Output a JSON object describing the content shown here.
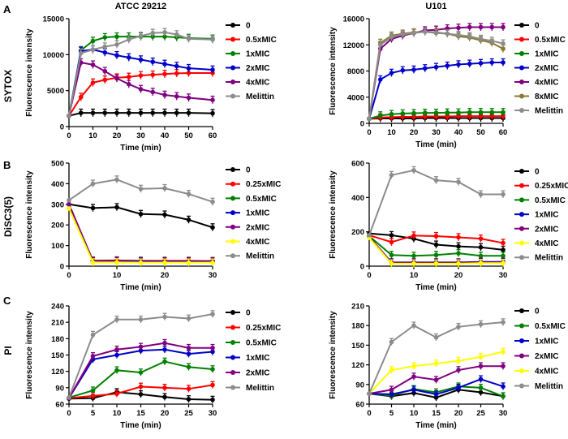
{
  "figure": {
    "panel_letters": [
      "A",
      "B",
      "C"
    ],
    "row_labels": [
      "SYTOX",
      "DiSC3(5)",
      "PI"
    ]
  },
  "colors": {
    "black": "#000000",
    "red": "#ff0000",
    "green": "#008000",
    "blue": "#0000c8",
    "purple": "#800080",
    "yellow": "#ffff00",
    "olive": "#8b7a2e",
    "gray": "#8c8c8c"
  },
  "chart_data": [
    {
      "type": "line",
      "title": "ATCC 29212",
      "xlabel": "Time (min)",
      "ylabel": "Fluorescence intensity",
      "xlim": [
        0,
        60
      ],
      "ylim": [
        0,
        15000
      ],
      "xticks": [
        0,
        10,
        20,
        30,
        40,
        50,
        60
      ],
      "yticks": [
        0,
        5000,
        10000,
        15000
      ],
      "series": [
        {
          "name": "0",
          "color": "black",
          "x": [
            0,
            5,
            10,
            15,
            20,
            25,
            30,
            35,
            40,
            45,
            50,
            60
          ],
          "values": [
            1500,
            1900,
            1900,
            1900,
            1900,
            1900,
            1900,
            1900,
            1900,
            1900,
            1900,
            1850
          ]
        },
        {
          "name": "0.5xMIC",
          "color": "red",
          "x": [
            0,
            5,
            10,
            15,
            20,
            25,
            30,
            35,
            40,
            45,
            50,
            60
          ],
          "values": [
            1500,
            4100,
            6100,
            6500,
            6800,
            6900,
            7100,
            7200,
            7300,
            7400,
            7450,
            7450
          ]
        },
        {
          "name": "1xMIC",
          "color": "green",
          "x": [
            0,
            5,
            10,
            15,
            20,
            25,
            30,
            35,
            40,
            45,
            50,
            60
          ],
          "values": [
            1500,
            10600,
            11900,
            12400,
            12500,
            12500,
            12500,
            12500,
            12500,
            12400,
            12300,
            12200
          ]
        },
        {
          "name": "2xMIC",
          "color": "blue",
          "x": [
            0,
            5,
            10,
            15,
            20,
            25,
            30,
            35,
            40,
            45,
            50,
            60
          ],
          "values": [
            1500,
            10500,
            10700,
            10300,
            9900,
            9600,
            9300,
            9000,
            8700,
            8400,
            8100,
            7900
          ]
        },
        {
          "name": "4xMIC",
          "color": "purple",
          "x": [
            0,
            5,
            10,
            15,
            20,
            25,
            30,
            35,
            40,
            45,
            50,
            60
          ],
          "values": [
            1500,
            8900,
            8600,
            7700,
            6700,
            5900,
            5200,
            4800,
            4400,
            4200,
            4000,
            3700
          ]
        },
        {
          "name": "Melittin",
          "color": "gray",
          "x": [
            0,
            5,
            10,
            15,
            20,
            25,
            30,
            35,
            40,
            45,
            50,
            60
          ],
          "values": [
            1500,
            10200,
            10700,
            11100,
            11400,
            12100,
            12600,
            13000,
            13100,
            12800,
            12200,
            12100
          ]
        }
      ]
    },
    {
      "type": "line",
      "title": "U101",
      "xlabel": "Time (min)",
      "ylabel": "Fluorescence intensity",
      "xlim": [
        0,
        60
      ],
      "ylim": [
        0,
        16000
      ],
      "xticks": [
        0,
        10,
        20,
        30,
        40,
        50,
        60
      ],
      "yticks": [
        0,
        4000,
        8000,
        12000,
        16000
      ],
      "series": [
        {
          "name": "0",
          "color": "black",
          "x": [
            0,
            5,
            10,
            15,
            20,
            25,
            30,
            35,
            40,
            45,
            50,
            55,
            60
          ],
          "values": [
            700,
            750,
            750,
            750,
            750,
            800,
            800,
            800,
            800,
            800,
            800,
            800,
            800
          ]
        },
        {
          "name": "0.5xMIC",
          "color": "red",
          "x": [
            0,
            5,
            10,
            15,
            20,
            25,
            30,
            35,
            40,
            45,
            50,
            55,
            60
          ],
          "values": [
            700,
            900,
            950,
            1000,
            1000,
            1050,
            1050,
            1050,
            1100,
            1100,
            1100,
            1100,
            1100
          ]
        },
        {
          "name": "1xMIC",
          "color": "green",
          "x": [
            0,
            5,
            10,
            15,
            20,
            25,
            30,
            35,
            40,
            45,
            50,
            55,
            60
          ],
          "values": [
            700,
            1200,
            1400,
            1500,
            1550,
            1600,
            1600,
            1650,
            1650,
            1700,
            1700,
            1700,
            1700
          ]
        },
        {
          "name": "2xMIC",
          "color": "blue",
          "x": [
            0,
            5,
            10,
            15,
            20,
            25,
            30,
            35,
            40,
            45,
            50,
            55,
            60
          ],
          "values": [
            700,
            6700,
            7700,
            8100,
            8200,
            8400,
            8600,
            8800,
            9000,
            9100,
            9200,
            9300,
            9300
          ]
        },
        {
          "name": "4xMIC",
          "color": "purple",
          "x": [
            0,
            5,
            10,
            15,
            20,
            25,
            30,
            35,
            40,
            45,
            50,
            55,
            60
          ],
          "values": [
            700,
            11400,
            12900,
            13400,
            13800,
            14200,
            14300,
            14500,
            14600,
            14700,
            14700,
            14700,
            14700
          ]
        },
        {
          "name": "8xMIC",
          "color": "olive",
          "x": [
            0,
            5,
            10,
            15,
            20,
            25,
            30,
            35,
            40,
            45,
            50,
            55,
            60
          ],
          "values": [
            700,
            12300,
            13400,
            13700,
            13900,
            14000,
            13900,
            13700,
            13300,
            13100,
            12700,
            12300,
            11400
          ]
        },
        {
          "name": "Melittin",
          "color": "gray",
          "x": [
            0,
            5,
            10,
            15,
            20,
            25,
            30,
            35,
            40,
            45,
            50,
            55,
            60
          ],
          "values": [
            700,
            12000,
            13200,
            13600,
            13800,
            14000,
            13800,
            13700,
            13500,
            13300,
            12900,
            12600,
            12200
          ]
        }
      ]
    },
    {
      "type": "line",
      "title": "",
      "xlabel": "Time (min)",
      "ylabel": "Fluorescence intensity",
      "xlim": [
        0,
        30
      ],
      "ylim": [
        0,
        500
      ],
      "xticks": [
        0,
        10,
        20,
        30
      ],
      "yticks": [
        0,
        100,
        200,
        300,
        400,
        500
      ],
      "series": [
        {
          "name": "0",
          "color": "black",
          "x": [
            0,
            5,
            10,
            15,
            20,
            25,
            30
          ],
          "values": [
            300,
            282,
            286,
            253,
            250,
            225,
            188
          ]
        },
        {
          "name": "0.25xMIC",
          "color": "red",
          "x": [
            0,
            5,
            10,
            15,
            20,
            25,
            30
          ],
          "values": [
            300,
            27,
            28,
            26,
            26,
            26,
            25
          ]
        },
        {
          "name": "0.5xMIC",
          "color": "green",
          "x": [
            0,
            5,
            10,
            15,
            20,
            25,
            30
          ],
          "values": [
            300,
            25,
            26,
            25,
            24,
            24,
            24
          ]
        },
        {
          "name": "1xMIC",
          "color": "blue",
          "x": [
            0,
            5,
            10,
            15,
            20,
            25,
            30
          ],
          "values": [
            300,
            24,
            25,
            24,
            23,
            23,
            23
          ]
        },
        {
          "name": "2xMIC",
          "color": "purple",
          "x": [
            0,
            5,
            10,
            15,
            20,
            25,
            30
          ],
          "values": [
            300,
            23,
            24,
            22,
            22,
            22,
            22
          ]
        },
        {
          "name": "4xMIC",
          "color": "yellow",
          "x": [
            0,
            5,
            10,
            15,
            20,
            25,
            30
          ],
          "values": [
            280,
            18,
            18,
            17,
            17,
            17,
            17
          ]
        },
        {
          "name": "Melittin",
          "color": "gray",
          "x": [
            0,
            5,
            10,
            15,
            20,
            25,
            30
          ],
          "values": [
            320,
            400,
            420,
            375,
            378,
            350,
            312
          ]
        }
      ]
    },
    {
      "type": "line",
      "title": "",
      "xlabel": "Time (min)",
      "ylabel": "Fluorescence intensity",
      "xlim": [
        0,
        30
      ],
      "ylim": [
        0,
        600
      ],
      "xticks": [
        0,
        10,
        20,
        30
      ],
      "yticks": [
        0,
        200,
        400,
        600
      ],
      "series": [
        {
          "name": "0",
          "color": "black",
          "x": [
            0,
            5,
            10,
            15,
            20,
            25,
            30
          ],
          "values": [
            190,
            180,
            160,
            125,
            115,
            110,
            95
          ]
        },
        {
          "name": "0.25xMIC",
          "color": "red",
          "x": [
            0,
            5,
            10,
            15,
            20,
            25,
            30
          ],
          "values": [
            180,
            140,
            178,
            175,
            168,
            160,
            135
          ]
        },
        {
          "name": "0.5xMIC",
          "color": "green",
          "x": [
            0,
            5,
            10,
            15,
            20,
            25,
            30
          ],
          "values": [
            175,
            65,
            60,
            65,
            75,
            60,
            60
          ]
        },
        {
          "name": "1xMIC",
          "color": "blue",
          "x": [
            0,
            5,
            10,
            15,
            20,
            25,
            30
          ],
          "values": [
            170,
            22,
            22,
            22,
            22,
            25,
            25
          ]
        },
        {
          "name": "2xMIC",
          "color": "purple",
          "x": [
            0,
            5,
            10,
            15,
            20,
            25,
            30
          ],
          "values": [
            170,
            20,
            20,
            20,
            20,
            22,
            22
          ]
        },
        {
          "name": "4xMIC",
          "color": "yellow",
          "x": [
            0,
            5,
            10,
            15,
            20,
            25,
            30
          ],
          "values": [
            165,
            15,
            15,
            15,
            15,
            18,
            18
          ]
        },
        {
          "name": "Melittin",
          "color": "gray",
          "x": [
            0,
            5,
            10,
            15,
            20,
            25,
            30
          ],
          "values": [
            180,
            530,
            558,
            500,
            490,
            418,
            418
          ]
        }
      ]
    },
    {
      "type": "line",
      "title": "",
      "xlabel": "Time (min)",
      "ylabel": "Fluorescence intensity",
      "xlim": [
        0,
        30
      ],
      "ylim": [
        60,
        240
      ],
      "xticks": [
        0,
        5,
        10,
        15,
        20,
        25,
        30
      ],
      "yticks": [
        60,
        90,
        120,
        150,
        180,
        210,
        240
      ],
      "series": [
        {
          "name": "0",
          "color": "black",
          "x": [
            0,
            5,
            10,
            15,
            20,
            25,
            30
          ],
          "values": [
            70,
            71,
            82,
            78,
            73,
            69,
            68
          ]
        },
        {
          "name": "0.25xMIC",
          "color": "red",
          "x": [
            0,
            5,
            10,
            15,
            20,
            25,
            30
          ],
          "values": [
            71,
            75,
            79,
            92,
            90,
            88,
            95
          ]
        },
        {
          "name": "0.5xMIC",
          "color": "green",
          "x": [
            0,
            5,
            10,
            15,
            20,
            25,
            30
          ],
          "values": [
            72,
            85,
            122,
            118,
            138,
            128,
            124
          ]
        },
        {
          "name": "1xMIC",
          "color": "blue",
          "x": [
            0,
            5,
            10,
            15,
            20,
            25,
            30
          ],
          "values": [
            71,
            142,
            150,
            158,
            160,
            152,
            156
          ]
        },
        {
          "name": "2xMIC",
          "color": "purple",
          "x": [
            0,
            5,
            10,
            15,
            20,
            25,
            30
          ],
          "values": [
            71,
            148,
            160,
            165,
            172,
            163,
            163
          ]
        },
        {
          "name": "Melittin",
          "color": "gray",
          "x": [
            0,
            5,
            10,
            15,
            20,
            25,
            30
          ],
          "values": [
            72,
            187,
            215,
            215,
            220,
            217,
            225
          ]
        }
      ]
    },
    {
      "type": "line",
      "title": "",
      "xlabel": "Time (min)",
      "ylabel": "Fluorescence intensity",
      "xlim": [
        0,
        30
      ],
      "ylim": [
        60,
        210
      ],
      "xticks": [
        0,
        5,
        10,
        15,
        20,
        25,
        30
      ],
      "yticks": [
        60,
        90,
        120,
        150,
        180,
        210
      ],
      "series": [
        {
          "name": "0",
          "color": "black",
          "x": [
            0,
            5,
            10,
            15,
            20,
            25,
            30
          ],
          "values": [
            76,
            72,
            77,
            70,
            82,
            78,
            72
          ]
        },
        {
          "name": "0.5xMIC",
          "color": "green",
          "x": [
            0,
            5,
            10,
            15,
            20,
            25,
            30
          ],
          "values": [
            76,
            73,
            83,
            78,
            87,
            85,
            72
          ]
        },
        {
          "name": "1xMIC",
          "color": "blue",
          "x": [
            0,
            5,
            10,
            15,
            20,
            25,
            30
          ],
          "values": [
            76,
            75,
            82,
            75,
            85,
            98,
            87
          ]
        },
        {
          "name": "2xMIC",
          "color": "purple",
          "x": [
            0,
            5,
            10,
            15,
            20,
            25,
            30
          ],
          "values": [
            76,
            82,
            102,
            97,
            112,
            118,
            118
          ]
        },
        {
          "name": "4xMIC",
          "color": "yellow",
          "x": [
            0,
            5,
            10,
            15,
            20,
            25,
            30
          ],
          "values": [
            76,
            112,
            118,
            122,
            126,
            132,
            140
          ]
        },
        {
          "name": "Melittin",
          "color": "gray",
          "x": [
            0,
            5,
            10,
            15,
            20,
            25,
            30
          ],
          "values": [
            76,
            155,
            180,
            162,
            178,
            182,
            185
          ]
        }
      ]
    }
  ]
}
